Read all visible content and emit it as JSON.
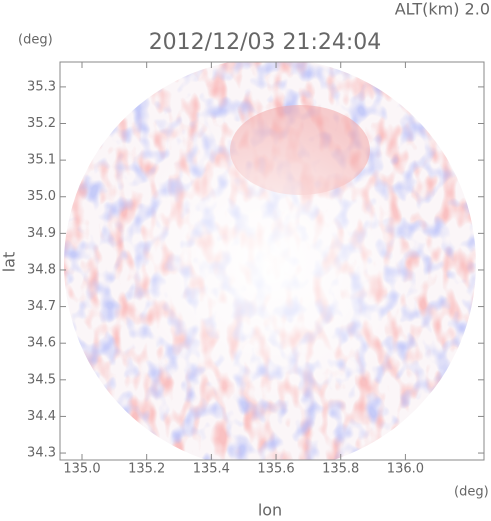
{
  "chart_data": {
    "type": "radar-map",
    "title": "2012/12/03 21:24:04",
    "subtitle": "ALT(km) 2.0",
    "x_label": "lon",
    "y_label": "lat",
    "x_unit": "(deg)",
    "y_unit": "(deg)",
    "xlim": [
      134.932,
      136.243
    ],
    "ylim": [
      34.281,
      35.368
    ],
    "xticks": [
      {
        "value": 135,
        "label": "135.0"
      },
      135.2,
      135.4,
      135.6,
      135.8,
      {
        "value": 136,
        "label": "136.0"
      }
    ],
    "yticks": [
      34.3,
      34.4,
      34.5,
      34.6,
      34.7,
      34.8,
      34.9,
      {
        "value": 35,
        "label": "35.0"
      },
      35.1,
      35.2,
      35.3
    ]
  }
}
